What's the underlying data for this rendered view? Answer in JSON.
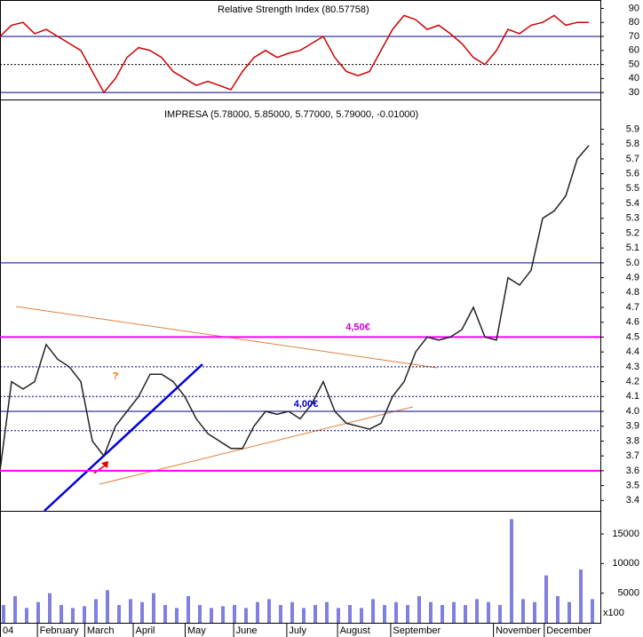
{
  "chart_data": [
    {
      "type": "line",
      "title": "Relative Strength Index (80.57758)",
      "color": "#cc0000",
      "x": [
        0,
        1,
        2,
        3,
        4,
        5,
        6,
        7,
        8,
        9,
        10,
        11,
        12,
        13,
        14,
        15,
        16,
        17,
        18,
        19,
        20,
        21,
        22,
        23,
        24,
        25,
        26,
        27,
        28,
        29,
        30,
        31,
        32,
        33,
        34,
        35,
        36,
        37,
        38,
        39,
        40,
        41,
        42,
        43,
        44,
        45,
        46,
        47,
        48,
        49,
        50,
        51
      ],
      "values": [
        70,
        78,
        80,
        72,
        75,
        70,
        65,
        60,
        45,
        30,
        40,
        55,
        62,
        60,
        55,
        45,
        40,
        35,
        38,
        35,
        32,
        45,
        55,
        60,
        55,
        58,
        60,
        65,
        70,
        55,
        45,
        42,
        45,
        60,
        75,
        85,
        82,
        75,
        78,
        72,
        65,
        55,
        50,
        60,
        75,
        72,
        78,
        80,
        85,
        78,
        80,
        80
      ],
      "xlim": [
        0,
        52
      ],
      "ylim": [
        25,
        96
      ],
      "yticks": [
        30,
        40,
        50,
        60,
        70,
        80,
        90
      ],
      "hlines": [
        {
          "value": 70,
          "color": "#000080",
          "style": "solid"
        },
        {
          "value": 50,
          "color": "#000000",
          "style": "dotted"
        },
        {
          "value": 30,
          "color": "#000080",
          "style": "solid"
        }
      ]
    },
    {
      "type": "line",
      "title": "IMPRESA (5.78000, 5.85000, 5.77000, 5.79000, -0.01000)",
      "color": "#222222",
      "x": [
        0,
        1,
        2,
        3,
        4,
        5,
        6,
        7,
        8,
        9,
        10,
        11,
        12,
        13,
        14,
        15,
        16,
        17,
        18,
        19,
        20,
        21,
        22,
        23,
        24,
        25,
        26,
        27,
        28,
        29,
        30,
        31,
        32,
        33,
        34,
        35,
        36,
        37,
        38,
        39,
        40,
        41,
        42,
        43,
        44,
        45,
        46,
        47,
        48,
        49,
        50,
        51
      ],
      "values": [
        3.6,
        4.2,
        4.15,
        4.2,
        4.45,
        4.35,
        4.3,
        4.2,
        3.8,
        3.7,
        3.9,
        4.0,
        4.1,
        4.25,
        4.25,
        4.2,
        4.1,
        3.95,
        3.85,
        3.8,
        3.75,
        3.75,
        3.9,
        4.0,
        3.98,
        4.0,
        3.95,
        4.05,
        4.2,
        4.0,
        3.92,
        3.9,
        3.88,
        3.92,
        4.1,
        4.2,
        4.4,
        4.5,
        4.48,
        4.5,
        4.55,
        4.7,
        4.5,
        4.48,
        4.9,
        4.85,
        4.95,
        5.3,
        5.35,
        5.45,
        5.7,
        5.79
      ],
      "xlim": [
        0,
        52
      ],
      "ylim": [
        3.33,
        6.1
      ],
      "yticks": [
        3.4,
        3.5,
        3.6,
        3.7,
        3.8,
        3.9,
        {
          "value": 4,
          "label": "4.0"
        },
        4.1,
        4.2,
        4.3,
        4.4,
        4.5,
        4.6,
        4.7,
        4.8,
        4.9,
        {
          "value": 5,
          "label": "5.0"
        },
        5.1,
        5.2,
        5.3,
        5.4,
        5.5,
        5.6,
        5.7,
        5.8,
        5.9
      ],
      "hlines": [
        {
          "value": 5,
          "color": "#000080",
          "style": "solid"
        },
        {
          "value": 4.3,
          "color": "#000080",
          "style": "dotted"
        },
        {
          "value": 4.1,
          "color": "#000080",
          "style": "dotted"
        },
        {
          "value": 4,
          "color": "#000080",
          "style": "solid"
        },
        {
          "value": 3.87,
          "color": "#000080",
          "style": "dotted"
        },
        {
          "value": 4.5,
          "color": "#ff00ff",
          "style": "solid"
        },
        {
          "value": 3.6,
          "color": "#ff00ff",
          "style": "solid"
        }
      ],
      "annotations": [
        {
          "text": "4,50€",
          "x": 31,
          "y": 4.53,
          "color": "#cc00cc"
        },
        {
          "text": "4,00€",
          "x": 26.5,
          "y": 4.01,
          "color": "#0000cc"
        },
        {
          "text": "?",
          "x": 10,
          "y": 4.2,
          "color": "#ff6600"
        }
      ]
    },
    {
      "type": "bar",
      "color": "#8080e0",
      "unit_label": "x100",
      "x": [
        0,
        1,
        2,
        3,
        4,
        5,
        6,
        7,
        8,
        9,
        10,
        11,
        12,
        13,
        14,
        15,
        16,
        17,
        18,
        19,
        20,
        21,
        22,
        23,
        24,
        25,
        26,
        27,
        28,
        29,
        30,
        31,
        32,
        33,
        34,
        35,
        36,
        37,
        38,
        39,
        40,
        41,
        42,
        43,
        44,
        45,
        46,
        47,
        48,
        49,
        50,
        51
      ],
      "values": [
        3000,
        4500,
        2500,
        3500,
        5000,
        3000,
        2500,
        2800,
        4000,
        5500,
        3000,
        4000,
        3500,
        5000,
        3000,
        2500,
        4500,
        3000,
        2500,
        2800,
        3000,
        2500,
        3500,
        4000,
        3000,
        3500,
        2500,
        3000,
        3500,
        2500,
        3000,
        2500,
        4000,
        3000,
        3500,
        3000,
        4500,
        3500,
        3000,
        3500,
        3000,
        4000,
        3500,
        3000,
        17500,
        4000,
        3500,
        8000,
        4500,
        3500,
        9000,
        4000
      ],
      "xlim": [
        0,
        52
      ],
      "ylim": [
        0,
        18900
      ],
      "yticks": [
        5000,
        10000,
        15000
      ],
      "xticks": [
        {
          "value": 0,
          "label": "04"
        },
        {
          "value": 3.2,
          "label": "February"
        },
        {
          "value": 7.3,
          "label": "March"
        },
        {
          "value": 11.5,
          "label": "April"
        },
        {
          "value": 16,
          "label": "May"
        },
        {
          "value": 20.2,
          "label": "June"
        },
        {
          "value": 24.8,
          "label": "July"
        },
        {
          "value": 29.2,
          "label": "August"
        },
        {
          "value": 33.8,
          "label": "September"
        },
        {
          "value": 42.7,
          "label": "November"
        },
        {
          "value": 47.1,
          "label": "December"
        }
      ]
    }
  ]
}
